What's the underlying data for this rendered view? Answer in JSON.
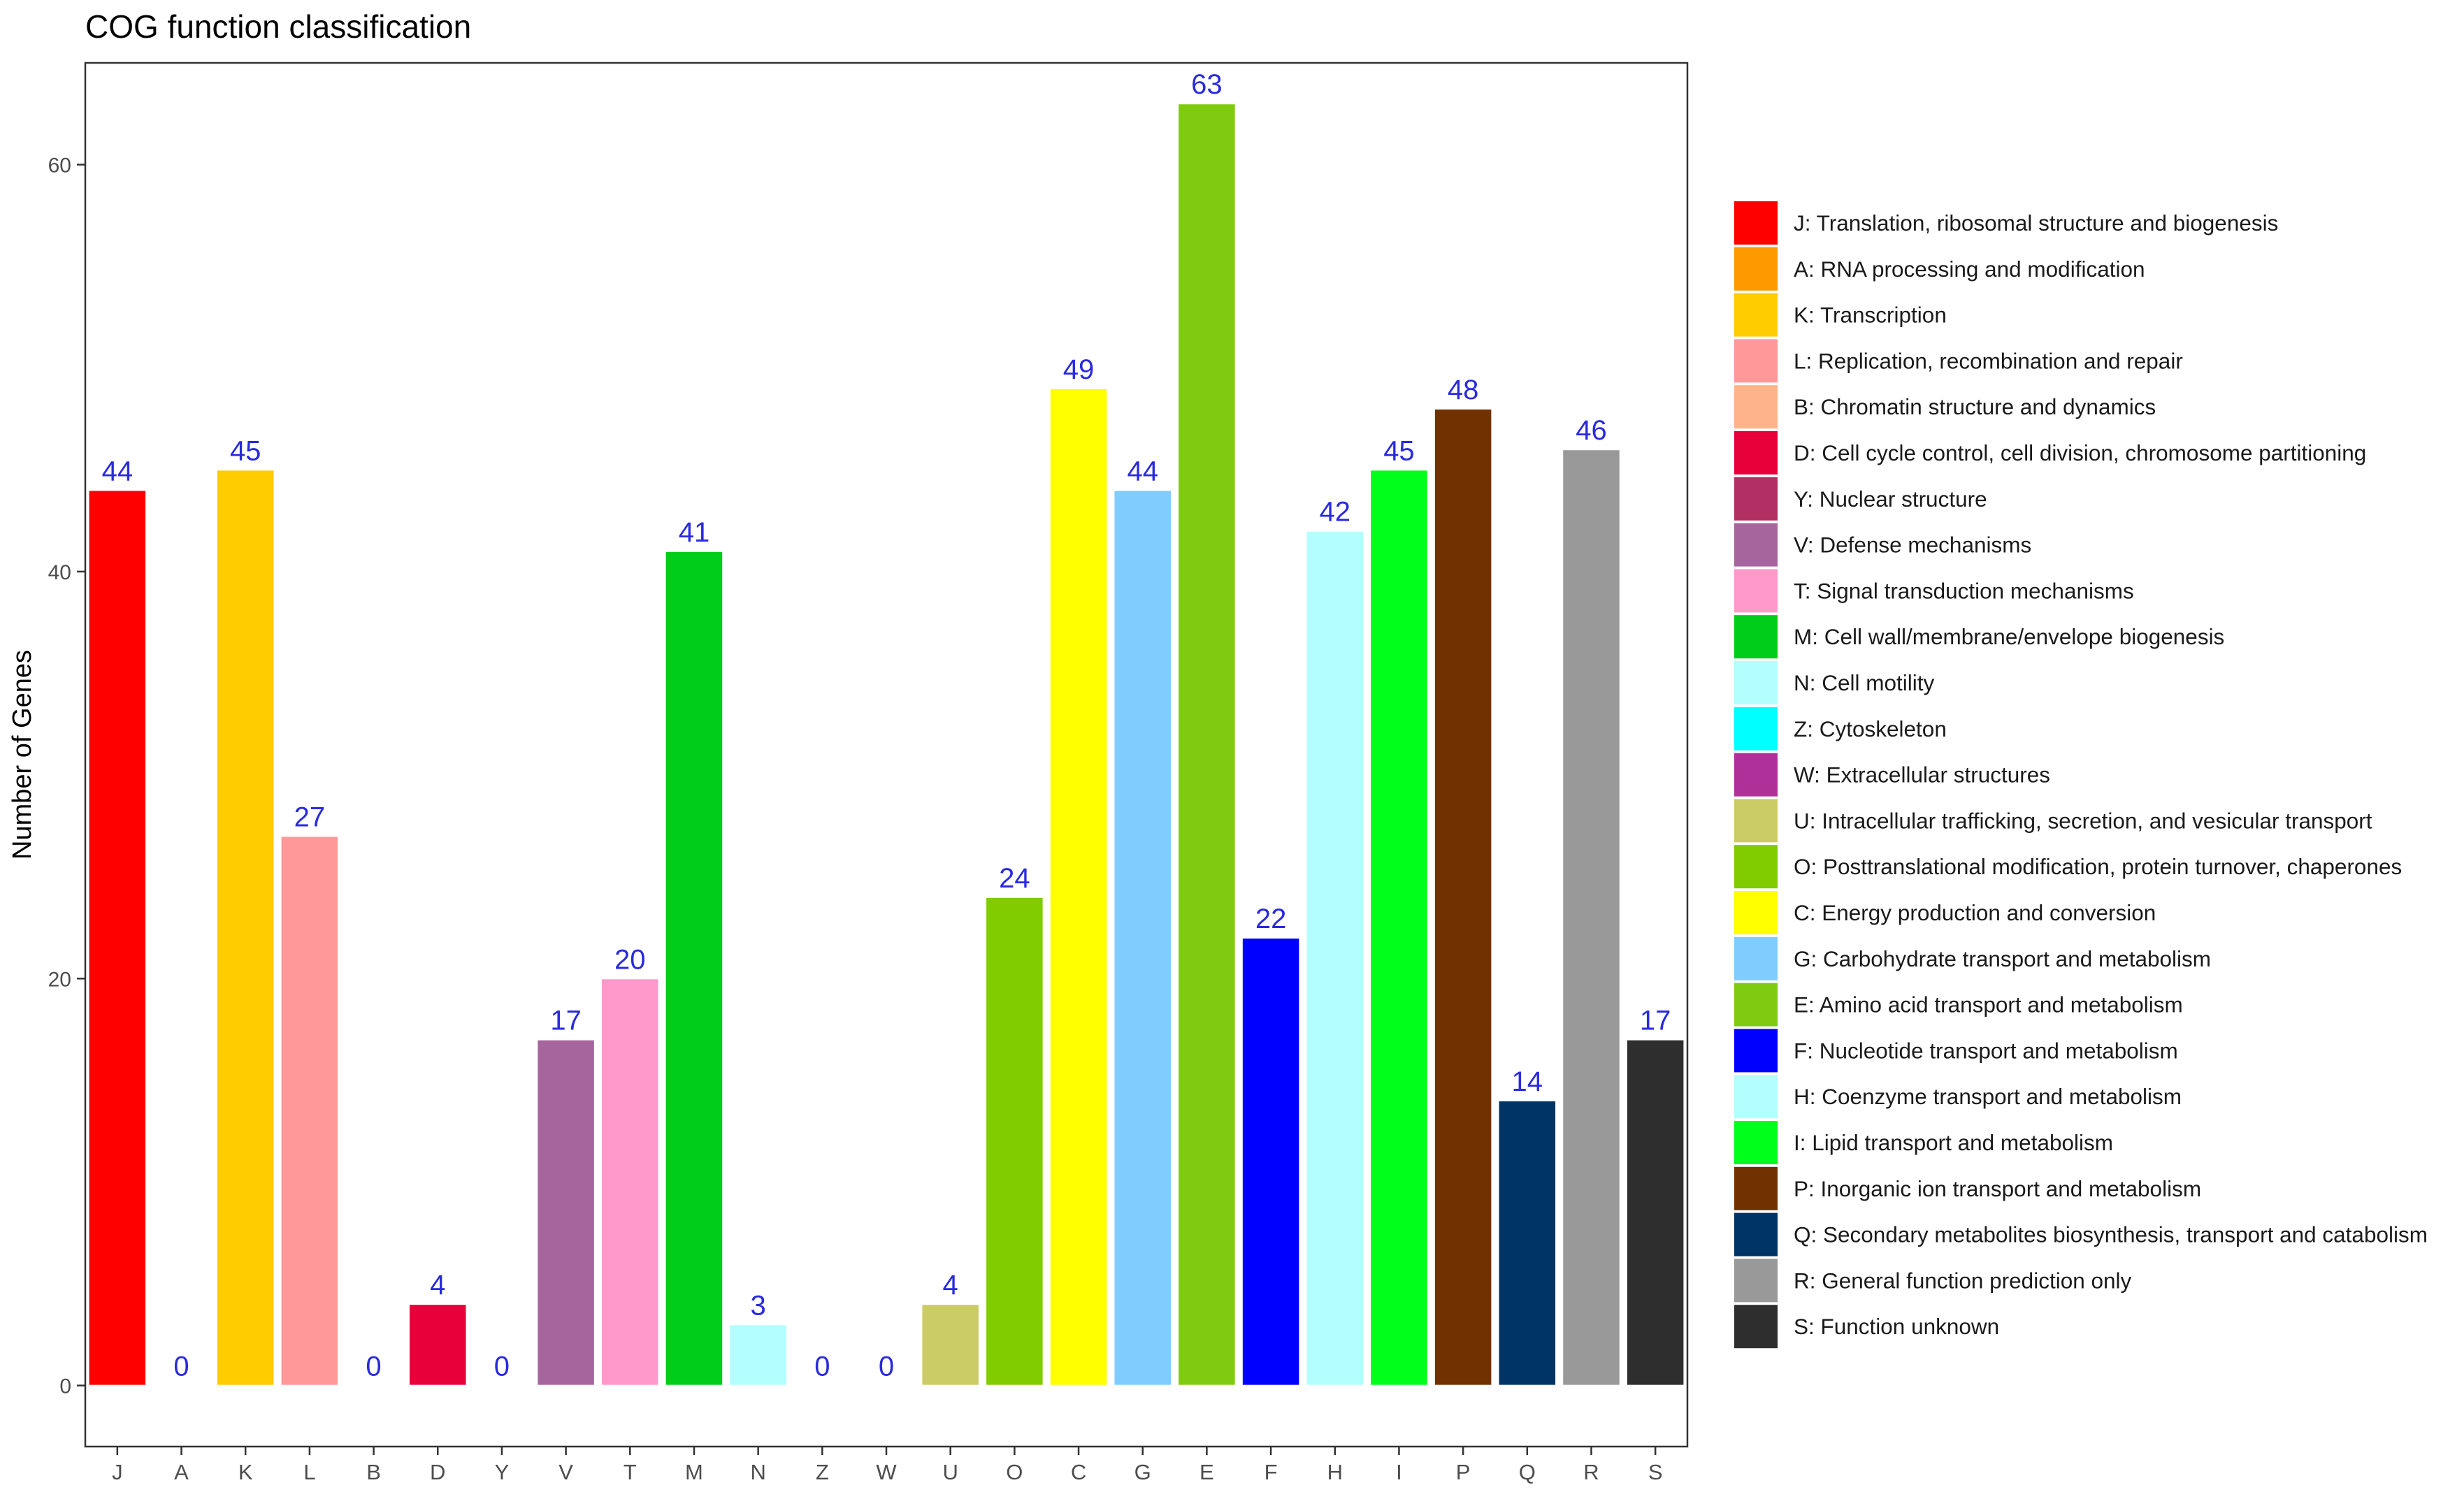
{
  "chart_data": {
    "type": "bar",
    "title": "COG function classification",
    "xlabel": "",
    "ylabel": "Number of Genes",
    "ylim": [
      -3,
      65
    ],
    "yticks": [
      0,
      20,
      40,
      60
    ],
    "grid": false,
    "legend_position": "right",
    "label_color": "#2a2adf",
    "categories": [
      "J",
      "A",
      "K",
      "L",
      "B",
      "D",
      "Y",
      "V",
      "T",
      "M",
      "N",
      "Z",
      "W",
      "U",
      "O",
      "C",
      "G",
      "E",
      "F",
      "H",
      "I",
      "P",
      "Q",
      "R",
      "S"
    ],
    "values": [
      44,
      0,
      45,
      27,
      0,
      4,
      0,
      17,
      20,
      41,
      3,
      0,
      0,
      4,
      24,
      49,
      44,
      63,
      22,
      42,
      45,
      48,
      14,
      46,
      17
    ],
    "colors": [
      "#ff0000",
      "#ff9900",
      "#ffcc00",
      "#ff9999",
      "#ffb38a",
      "#e8003a",
      "#b12f63",
      "#a6659c",
      "#ff99cc",
      "#00cc1a",
      "#b3ffff",
      "#00ffff",
      "#b0309a",
      "#cccc66",
      "#80cc00",
      "#ffff00",
      "#80ccff",
      "#7ecb12",
      "#0000ff",
      "#b3ffff",
      "#00ff1a",
      "#723100",
      "#003366",
      "#999999",
      "#2e2e2e"
    ],
    "legend": [
      "J: Translation, ribosomal structure and biogenesis",
      "A: RNA processing and modification",
      "K: Transcription",
      "L: Replication, recombination and repair",
      "B: Chromatin structure and dynamics",
      "D: Cell cycle control, cell division, chromosome partitioning",
      "Y: Nuclear structure",
      "V: Defense mechanisms",
      "T: Signal transduction mechanisms",
      "M: Cell wall/membrane/envelope biogenesis",
      "N: Cell motility",
      "Z: Cytoskeleton",
      "W: Extracellular structures",
      "U: Intracellular trafficking, secretion, and vesicular transport",
      "O: Posttranslational modification, protein turnover, chaperones",
      "C: Energy production and conversion",
      "G: Carbohydrate transport and metabolism",
      "E: Amino acid transport and metabolism",
      "F: Nucleotide transport and metabolism",
      "H: Coenzyme transport and metabolism",
      "I: Lipid transport and metabolism",
      "P: Inorganic ion transport and metabolism",
      "Q: Secondary metabolites biosynthesis, transport and catabolism",
      "R: General function prediction only",
      "S: Function unknown"
    ]
  }
}
